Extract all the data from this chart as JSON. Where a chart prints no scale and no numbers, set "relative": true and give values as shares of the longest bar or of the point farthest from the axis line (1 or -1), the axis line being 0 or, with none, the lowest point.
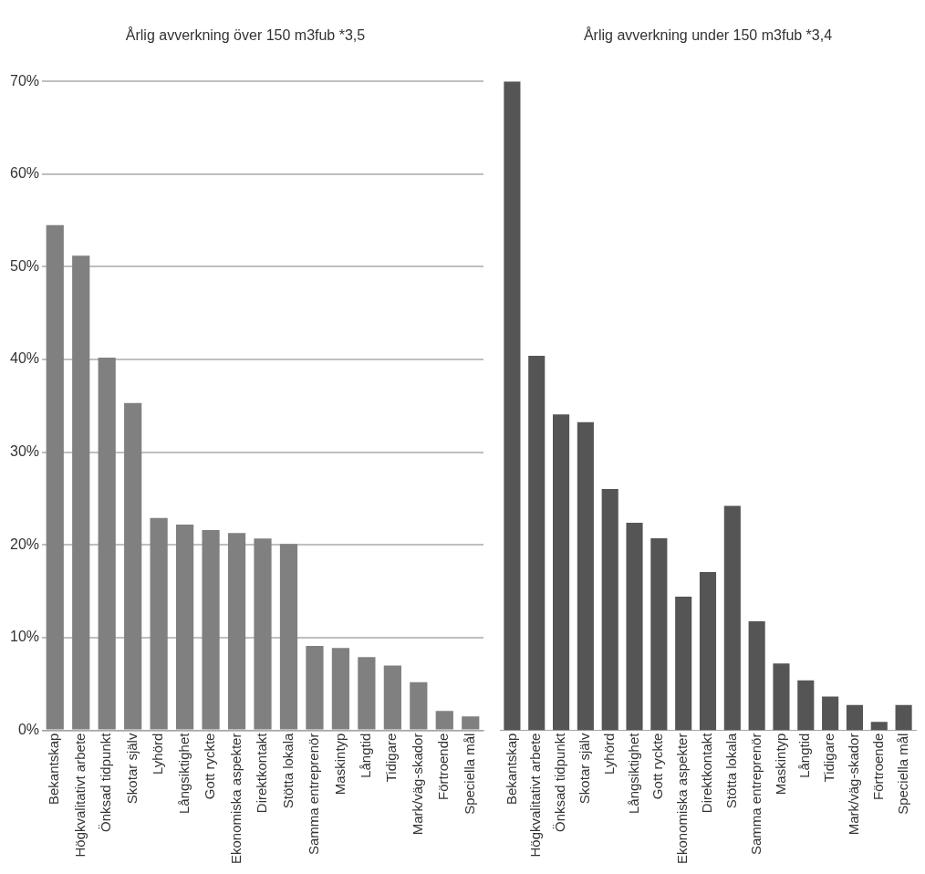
{
  "chart_data": [
    {
      "type": "bar",
      "title": "Årlig avverkning över 150 m3fub *3,5",
      "categories": [
        "Bekantskap",
        "Högkvalitativt arbete",
        "Önksad tidpunkt",
        "Skotar själv",
        "Lyhörd",
        "Långsiktighet",
        "Gott ryckte",
        "Ekonomiska aspekter",
        "Direktkontakt",
        "Stötta lokala",
        "Samma entreprenör",
        "Maskintyp",
        "Långtid",
        "Tidigare",
        "Mark/väg-skador",
        "Förtroende",
        "Speciella mål"
      ],
      "values": [
        54.5,
        51.2,
        40.2,
        35.3,
        22.9,
        22.2,
        21.6,
        21.3,
        20.7,
        20.1,
        9.1,
        8.9,
        7.9,
        7.0,
        5.2,
        2.1,
        1.5
      ],
      "color": "#808080",
      "ylim": [
        0,
        70
      ],
      "yticks": [
        {
          "value": 0,
          "label": "0%"
        },
        {
          "value": 10,
          "label": "10%"
        },
        {
          "value": 20,
          "label": "20%"
        },
        {
          "value": 30,
          "label": "30%"
        },
        {
          "value": 40,
          "label": "40%"
        },
        {
          "value": 50,
          "label": "50%"
        },
        {
          "value": 60,
          "label": "60%"
        },
        {
          "value": 70,
          "label": "70%"
        }
      ],
      "grid": "y"
    },
    {
      "type": "bar",
      "title": "Årlig avverkning under 150 m3fub *3,4",
      "categories": [
        "Bekantskap",
        "Högkvalitativt arbete",
        "Önksad tidpunkt",
        "Skotar själv",
        "Lyhörd",
        "Långsiktighet",
        "Gott ryckte",
        "Ekonomiska aspekter",
        "Direktkontakt",
        "Stötta lokala",
        "Samma entreprenör",
        "Maskintyp",
        "Långtid",
        "Tidigare",
        "Mark/väg-skador",
        "Förtroende",
        "Speciella mål"
      ],
      "values": [
        1,
        0.577,
        0.487,
        0.475,
        0.372,
        0.32,
        0.296,
        0.206,
        0.244,
        0.346,
        0.168,
        0.103,
        0.077,
        0.052,
        0.039,
        0.013,
        0.039
      ],
      "color": "#555555",
      "relative": true,
      "tick_labels": "x"
    }
  ]
}
